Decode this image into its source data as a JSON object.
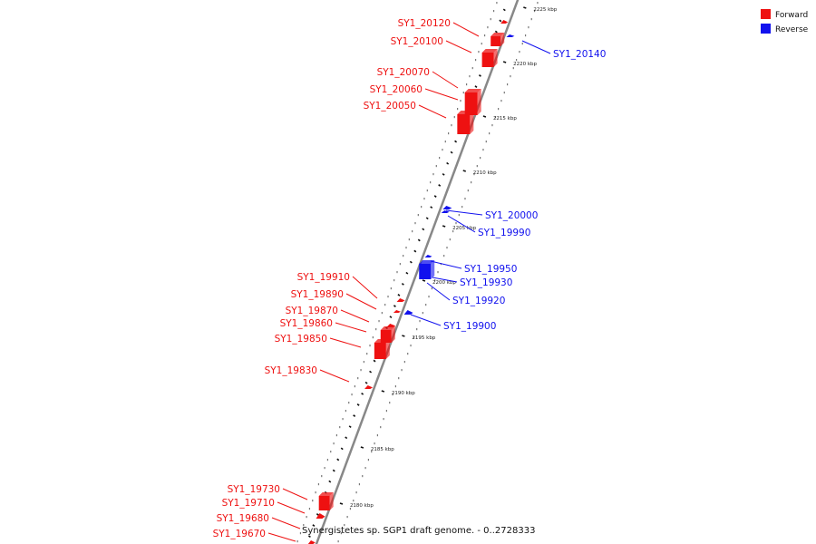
{
  "legend": [
    {
      "label": "Forward",
      "color": "#ee1111"
    },
    {
      "label": "Reverse",
      "color": "#1111ee"
    }
  ],
  "caption": "Synergistetes sp. SGP1 draft genome. - 0..2728333",
  "colors": {
    "forward": "#ee1111",
    "reverse": "#1111ee",
    "backbone": "#888888",
    "tick": "#111111"
  },
  "scale": [
    {
      "label": "2225 kbp",
      "kbp": 2225
    },
    {
      "label": "2220 kbp",
      "kbp": 2220
    },
    {
      "label": "2215 kbp",
      "kbp": 2215
    },
    {
      "label": "2210 kbp",
      "kbp": 2210
    },
    {
      "label": "2205 kbp",
      "kbp": 2205
    },
    {
      "label": "2200 kbp",
      "kbp": 2200
    },
    {
      "label": "2195 kbp",
      "kbp": 2195
    },
    {
      "label": "2190 kbp",
      "kbp": 2190
    },
    {
      "label": "2185 kbp",
      "kbp": 2185
    },
    {
      "label": "2180 kbp",
      "kbp": 2180
    }
  ],
  "genes": [
    {
      "name": "SY1_20120",
      "strand": "forward"
    },
    {
      "name": "SY1_20100",
      "strand": "forward"
    },
    {
      "name": "SY1_20070",
      "strand": "forward"
    },
    {
      "name": "SY1_20060",
      "strand": "forward"
    },
    {
      "name": "SY1_20050",
      "strand": "forward"
    },
    {
      "name": "SY1_19910",
      "strand": "forward"
    },
    {
      "name": "SY1_19890",
      "strand": "forward"
    },
    {
      "name": "SY1_19870",
      "strand": "forward"
    },
    {
      "name": "SY1_19860",
      "strand": "forward"
    },
    {
      "name": "SY1_19850",
      "strand": "forward"
    },
    {
      "name": "SY1_19830",
      "strand": "forward"
    },
    {
      "name": "SY1_19730",
      "strand": "forward"
    },
    {
      "name": "SY1_19710",
      "strand": "forward"
    },
    {
      "name": "SY1_19680",
      "strand": "forward"
    },
    {
      "name": "SY1_19670",
      "strand": "forward"
    },
    {
      "name": "SY1_20140",
      "strand": "reverse"
    },
    {
      "name": "SY1_20000",
      "strand": "reverse"
    },
    {
      "name": "SY1_19990",
      "strand": "reverse"
    },
    {
      "name": "SY1_19950",
      "strand": "reverse"
    },
    {
      "name": "SY1_19930",
      "strand": "reverse"
    },
    {
      "name": "SY1_19920",
      "strand": "reverse"
    },
    {
      "name": "SY1_19900",
      "strand": "reverse"
    }
  ]
}
